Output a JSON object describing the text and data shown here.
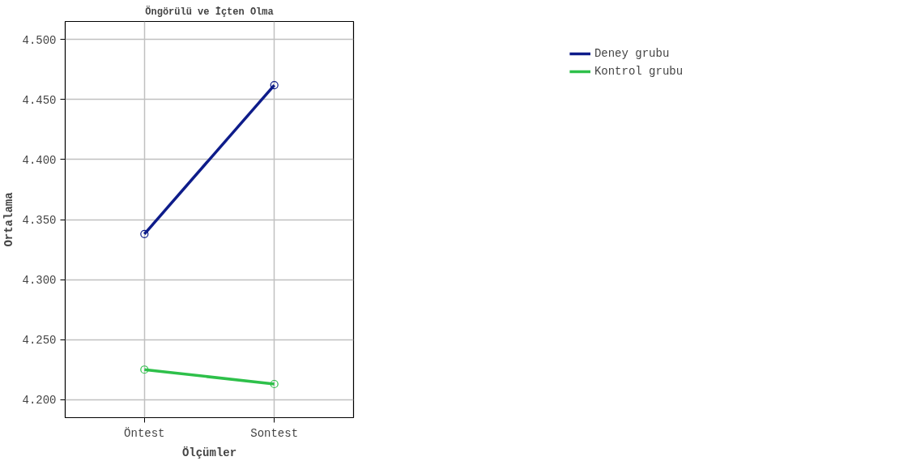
{
  "chart_data": {
    "type": "line",
    "title": "Öngörülü ve İçten Olma",
    "xlabel": "Ölçümler",
    "ylabel": "Ortalama",
    "categories": [
      "Öntest",
      "Sontest"
    ],
    "series": [
      {
        "name": "Deney grubu",
        "color": "#0e1c8a",
        "values": [
          4.338,
          4.462
        ]
      },
      {
        "name": "Kontrol grubu",
        "color": "#2ec04a",
        "values": [
          4.225,
          4.213
        ]
      }
    ],
    "ylim": [
      4.185,
      4.515
    ],
    "yticks": [
      {
        "value": 4.2,
        "label": "4.200"
      },
      {
        "value": 4.25,
        "label": "4.250"
      },
      {
        "value": 4.3,
        "label": "4.300"
      },
      {
        "value": 4.35,
        "label": "4.350"
      },
      {
        "value": 4.4,
        "label": "4.400"
      },
      {
        "value": 4.45,
        "label": "4.450"
      },
      {
        "value": 4.5,
        "label": "4.500"
      }
    ],
    "grid": true,
    "legend": "top right",
    "marker": "circle",
    "line_style": "solid"
  }
}
